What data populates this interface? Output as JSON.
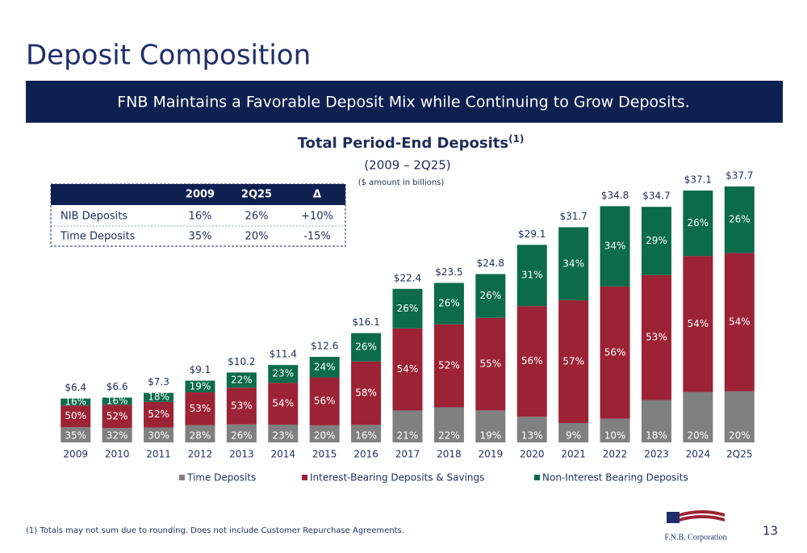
{
  "page": {
    "title": "Deposit Composition",
    "banner": "FNB Maintains a Favorable Deposit Mix while Continuing to Grow Deposits.",
    "footnote": "(1) Totals may not sum due to rounding. Does not include Customer Repurchase Agreements.",
    "page_number": "13",
    "logo": "F.N.B. Corporation"
  },
  "table": {
    "header": [
      "2009",
      "2Q25",
      "Δ"
    ],
    "rows": [
      [
        "NIB Deposits",
        "16%",
        "26%",
        "+10%"
      ],
      [
        "Time Deposits",
        "35%",
        "20%",
        "-15%"
      ]
    ]
  },
  "chart_data": {
    "type": "stacked-bar",
    "title": "Total Period-End Deposits",
    "title_note": "(1)",
    "subtitle": "(2009 – 2Q25)",
    "note": "($ amount in billions)",
    "categories": [
      "2009",
      "2010",
      "2011",
      "2012",
      "2013",
      "2014",
      "2015",
      "2016",
      "2017",
      "2018",
      "2019",
      "2020",
      "2021",
      "2022",
      "2023",
      "2024",
      "2Q25"
    ],
    "values": [
      6.4,
      6.6,
      7.3,
      9.1,
      10.2,
      11.4,
      12.6,
      16.1,
      22.4,
      23.5,
      24.8,
      29.1,
      31.7,
      34.8,
      34.7,
      37.1,
      37.7
    ],
    "value_labels": [
      "$6.4",
      "$6.6",
      "$7.3",
      "$9.1",
      "$10.2",
      "$11.4",
      "$12.6",
      "$16.1",
      "$22.4",
      "$23.5",
      "$24.8",
      "$29.1",
      "$31.7",
      "$34.8",
      "$34.7",
      "$37.1",
      "$37.7"
    ],
    "series": [
      {
        "name": "Time Deposits",
        "color": "#808080",
        "values": [
          35,
          32,
          30,
          28,
          26,
          23,
          20,
          16,
          21,
          22,
          19,
          13,
          9,
          10,
          18,
          20,
          20
        ],
        "value_labels": [
          "35%",
          "32%",
          "30%",
          "28%",
          "26%",
          "23%",
          "20%",
          "16%",
          "21%",
          "22%",
          "19%",
          "13%",
          "9%",
          "10%",
          "18%",
          "20%",
          "20%"
        ]
      },
      {
        "name": "Interest-Bearing Deposits & Savings",
        "color": "#9b2335",
        "values": [
          50,
          52,
          52,
          53,
          53,
          54,
          56,
          58,
          54,
          52,
          55,
          56,
          57,
          56,
          53,
          54,
          54
        ],
        "value_labels": [
          "50%",
          "52%",
          "52%",
          "53%",
          "53%",
          "54%",
          "56%",
          "58%",
          "54%",
          "52%",
          "55%",
          "56%",
          "57%",
          "56%",
          "53%",
          "54%",
          "54%"
        ]
      },
      {
        "name": "Non-Interest Bearing Deposits",
        "color": "#0b6b4b",
        "values": [
          16,
          16,
          18,
          19,
          22,
          23,
          24,
          26,
          26,
          26,
          26,
          31,
          34,
          34,
          29,
          26,
          26
        ],
        "value_labels": [
          "16%",
          "16%",
          "18%",
          "19%",
          "22%",
          "23%",
          "24%",
          "26%",
          "26%",
          "26%",
          "26%",
          "31%",
          "34%",
          "34%",
          "29%",
          "26%",
          "26%"
        ]
      }
    ]
  }
}
